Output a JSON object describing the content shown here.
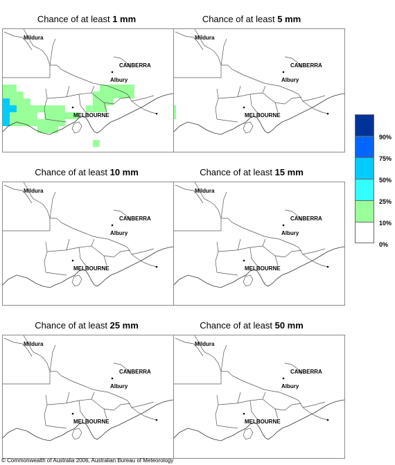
{
  "panels": [
    {
      "prefix": "Chance of at least ",
      "amount": "1 mm"
    },
    {
      "prefix": "Chance of at least ",
      "amount": "5 mm"
    },
    {
      "prefix": "Chance of at least ",
      "amount": "10 mm"
    },
    {
      "prefix": "Chance of at least ",
      "amount": "15 mm"
    },
    {
      "prefix": "Chance of at least ",
      "amount": "25 mm"
    },
    {
      "prefix": "Chance of at least ",
      "amount": "50 mm"
    }
  ],
  "places": {
    "mildura": "Mildura",
    "canberra": "CANBERRA",
    "albury": "Albury",
    "melbourne": "MELBOURNE"
  },
  "legend": [
    {
      "label": "90%",
      "color": "#003399"
    },
    {
      "label": "75%",
      "color": "#0066ff"
    },
    {
      "label": "50%",
      "color": "#00ccff"
    },
    {
      "label": "25%",
      "color": "#33ffff"
    },
    {
      "label": "10%",
      "color": "#99ff99"
    },
    {
      "label": "0%",
      "color": "#ffffff"
    }
  ],
  "copyright": "© Commonwealth of Australia 2006, Australian Bureau of Meteorology"
}
